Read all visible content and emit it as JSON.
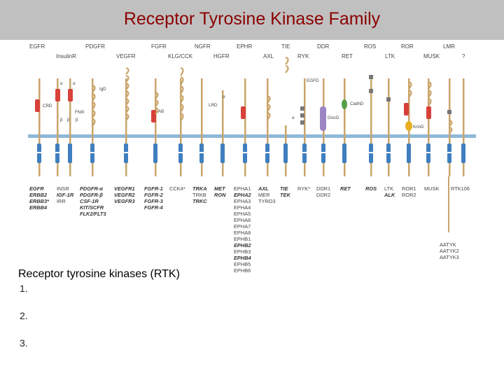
{
  "title": "Receptor Tyrosine Kinase Family",
  "caption": "Receptor tyrosine kinases (RTK)",
  "list": [
    "1.",
    "2.",
    "3."
  ],
  "colors": {
    "title": "#8b0000",
    "stalk": "#c9a56a",
    "kinase": "#3f7fbf",
    "cysteine": "#d8403a",
    "membrane": "#8fb8d8",
    "egfd": "#777777",
    "cadherin": "#55a04a",
    "discoidin": "#9a86c4",
    "kringle": "#e8b020"
  },
  "top_labels": {
    "row1": [
      "EGFR",
      "PDGFR",
      "FGFR",
      "NGFR",
      "EPHR",
      "TIE",
      "DDR",
      "ROS",
      "ROR",
      "LMR"
    ],
    "row2": [
      "InsulinR",
      "VEGFR",
      "KLG/CCK",
      "HGFR",
      "AXL",
      "RYK",
      "RET",
      "LTK",
      "MUSK",
      "?"
    ]
  },
  "domain_labels": [
    "CRD",
    "FNIII",
    "IgD",
    "AB",
    "LRD",
    "EGFD",
    "CadhD",
    "DiscD",
    "KrinD"
  ],
  "greek": [
    "α",
    "α",
    "β",
    "β",
    "α",
    "α",
    "β"
  ],
  "bottom_groups": [
    {
      "lines": [
        "EGFR",
        "ERBB2",
        "ERBB3*",
        "ERBB4"
      ]
    },
    {
      "lines": [
        "INSR",
        "IGF-1R",
        "IRR"
      ]
    },
    {
      "lines": [
        "PDGFR-α",
        "PDGFR-β",
        "CSF-1R",
        "KIT/SCFR",
        "FLK2/FLT3"
      ]
    },
    {
      "lines": [
        "VEGFR1",
        "VEGFR2",
        "VEGFR3"
      ]
    },
    {
      "lines": [
        "FGFR-1",
        "FGFR-2",
        "FGFR-3",
        "FGFR-4"
      ]
    },
    {
      "lines": [
        "CCK4*"
      ]
    },
    {
      "lines": [
        "TRKA",
        "TRKB",
        "TRKC"
      ]
    },
    {
      "lines": [
        "MET",
        "RON"
      ]
    },
    {
      "lines": [
        "EPHA1",
        "EPHA2",
        "EPHA3",
        "EPHA4",
        "EPHA5",
        "EPHA6",
        "EPHA7",
        "EPHA8",
        "EPHB1",
        "EPHB2",
        "EPHB3",
        "EPHB4",
        "EPHB5",
        "EPHB6"
      ]
    },
    {
      "lines": [
        "AXL",
        "MER",
        "TYRO3"
      ]
    },
    {
      "lines": [
        "TIE",
        "TEK"
      ]
    },
    {
      "lines": [
        "RYK*"
      ]
    },
    {
      "lines": [
        "DDR1",
        "DDR2"
      ]
    },
    {
      "lines": [
        "RET"
      ]
    },
    {
      "lines": [
        "ROS"
      ]
    },
    {
      "lines": [
        "LTK",
        "ALK"
      ]
    },
    {
      "lines": [
        "ROR1",
        "ROR2"
      ]
    },
    {
      "lines": [
        "MUSK"
      ]
    },
    {
      "lines": [
        "RTK106"
      ]
    },
    {
      "lines": [
        "AATYK",
        "AATYK2",
        "AATYK3"
      ]
    }
  ]
}
